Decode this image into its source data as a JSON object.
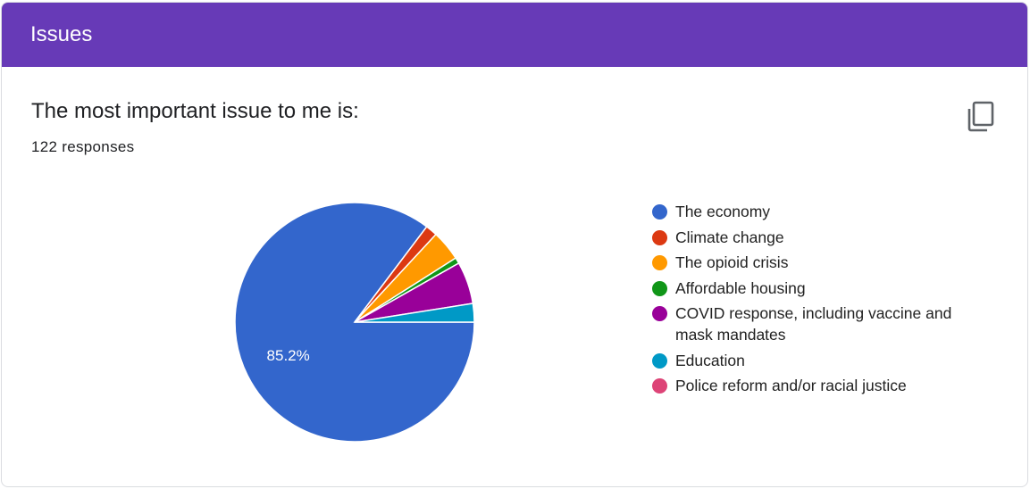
{
  "section": {
    "title": "Issues",
    "header_color": "#673ab7"
  },
  "question": {
    "title": "The most important issue to me is:",
    "responses": "122 responses"
  },
  "copy_icon": "copy-icon",
  "chart_data": {
    "type": "pie",
    "total_responses": 122,
    "slices": [
      {
        "label": "The economy",
        "percent": 85.2,
        "color": "#3366cc",
        "show_label": true
      },
      {
        "label": "Climate change",
        "percent": 1.6,
        "color": "#dc3912",
        "show_label": false
      },
      {
        "label": "The opioid crisis",
        "percent": 4.1,
        "color": "#ff9900",
        "show_label": false
      },
      {
        "label": "Affordable housing",
        "percent": 0.8,
        "color": "#109618",
        "show_label": false
      },
      {
        "label": "COVID response, including vaccine and mask mandates",
        "percent": 5.7,
        "color": "#990099",
        "show_label": false
      },
      {
        "label": "Education",
        "percent": 2.5,
        "color": "#0099c6",
        "show_label": false
      },
      {
        "label": "Police reform and/or racial justice",
        "percent": 0,
        "color": "#dd4477",
        "show_label": false
      }
    ],
    "data_label": "85.2%",
    "legend_position": "right"
  }
}
